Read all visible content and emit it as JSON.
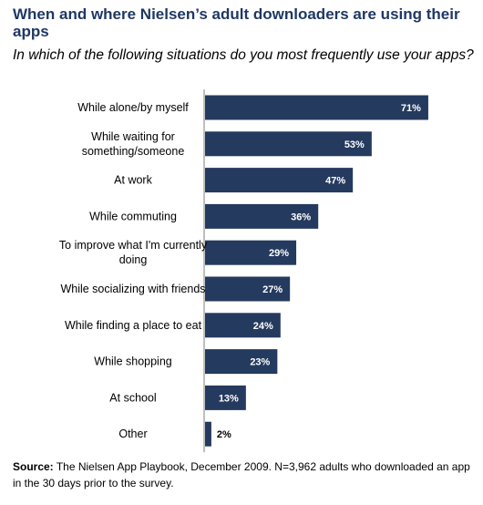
{
  "header": {
    "title": "When and where Nielsen’s adult downloaders are using their apps",
    "subtitle": "In which of the following situations do you most frequently use your apps?"
  },
  "footer": {
    "source_label": "Source:",
    "source_text": "The Nielsen App Playbook, December 2009. N=3,962 adults who downloaded an app in the 30 days prior to the survey."
  },
  "colors": {
    "bar": "#243a5e",
    "title": "#1f3864",
    "label_on_bar": "#ffffff",
    "label_outside": "#000000"
  },
  "chart_data": {
    "type": "bar",
    "orientation": "horizontal",
    "categories": [
      "While alone/by myself",
      "While waiting for something/someone",
      "At work",
      "While commuting",
      "To improve what I'm currently doing",
      "While socializing with friends",
      "While finding a place to eat",
      "While shopping",
      "At school",
      "Other"
    ],
    "category_lines": [
      [
        "While alone/by myself"
      ],
      [
        "While waiting for",
        "something/someone"
      ],
      [
        "At work"
      ],
      [
        "While commuting"
      ],
      [
        "To improve what I'm currently",
        "doing"
      ],
      [
        "While socializing with friends"
      ],
      [
        "While finding a place to eat"
      ],
      [
        "While shopping"
      ],
      [
        "At school"
      ],
      [
        "Other"
      ]
    ],
    "values": [
      71,
      53,
      47,
      36,
      29,
      27,
      24,
      23,
      13,
      2
    ],
    "value_labels": [
      "71%",
      "53%",
      "47%",
      "36%",
      "29%",
      "27%",
      "24%",
      "23%",
      "13%",
      "2%"
    ],
    "unit": "%",
    "xlim": [
      0,
      100
    ],
    "grid": false,
    "legend": "none"
  }
}
